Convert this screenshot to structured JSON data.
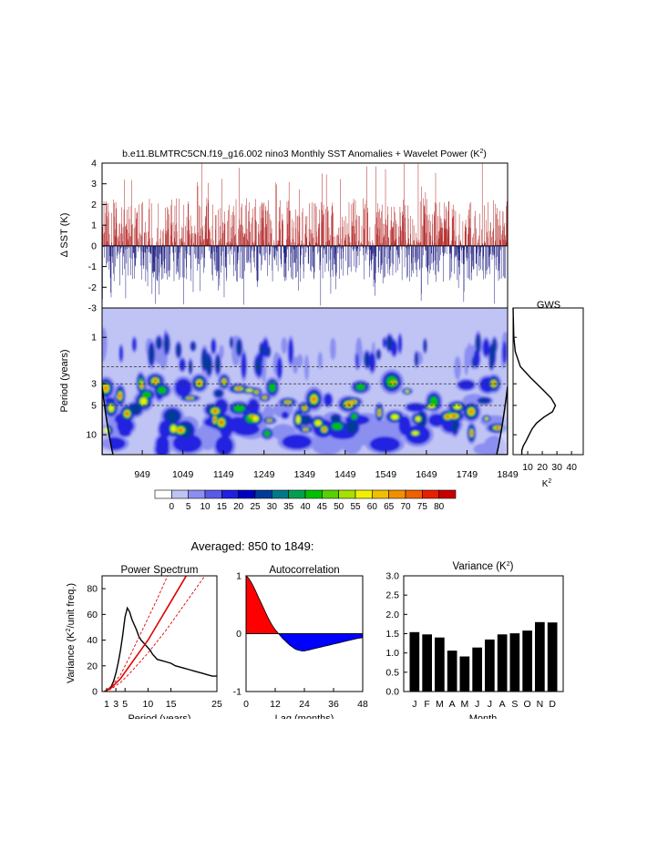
{
  "figure": {
    "title_main": "b.e11.BLMTRC5CN.f19_g16.002 nino3 Monthly SST Anomalies + Wavelet Power (K",
    "title_sup": "2",
    "title_close": ")",
    "averaged_title": "Averaged: 850 to 1849:"
  },
  "chart_data": [
    {
      "id": "sst-anomaly",
      "type": "bar",
      "title": "",
      "xlabel": "",
      "ylabel": "Δ SST (K)",
      "ylim": [
        -3,
        4
      ],
      "yticks": [
        "4",
        "3",
        "2",
        "1",
        "0",
        "-1",
        "-2",
        "-3"
      ],
      "xlim": [
        850,
        1849
      ],
      "sampling": "monthly, 850–1849",
      "colors": {
        "positive": "#b22222",
        "negative": "#1a1a80"
      }
    },
    {
      "id": "wavelet-power",
      "type": "heatmap",
      "title": "",
      "ylabel": "Period (years)",
      "yticks": [
        "1",
        "3",
        "5",
        "10"
      ],
      "xticks": [
        "949",
        "1049",
        "1149",
        "1249",
        "1349",
        "1449",
        "1549",
        "1649",
        "1749",
        "1849"
      ],
      "xlim": [
        850,
        1849
      ],
      "y_scale": "log",
      "ylim": [
        0.5,
        16
      ],
      "dashed_periods": [
        2,
        3,
        5
      ],
      "background_color": "#c0c4f4",
      "hotspot_periods_years": [
        3.5,
        5.5,
        7.5
      ],
      "colorbar": {
        "labels": [
          "0",
          "5",
          "10",
          "15",
          "20",
          "25",
          "30",
          "35",
          "40",
          "45",
          "50",
          "55",
          "60",
          "65",
          "70",
          "75",
          "80"
        ],
        "colors": [
          "#ffffff",
          "#c0c4f4",
          "#8a8ff0",
          "#5a5ae8",
          "#2020e0",
          "#0000c0",
          "#003a9a",
          "#007a8a",
          "#00a050",
          "#00c000",
          "#5ad000",
          "#a8e000",
          "#f0f000",
          "#f0c000",
          "#f09000",
          "#f06000",
          "#e82000",
          "#c80000"
        ]
      }
    },
    {
      "id": "gws",
      "type": "line",
      "title": "GWS",
      "xlabel": "K",
      "xlabel_sup": "2",
      "xticks": [
        "10",
        "20",
        "30",
        "40"
      ],
      "xlim": [
        0,
        48
      ],
      "y_scale": "log",
      "ylim": [
        0.5,
        16
      ],
      "points": [
        [
          0,
          0.5
        ],
        [
          0.5,
          1.0
        ],
        [
          1.5,
          1.4
        ],
        [
          5,
          2.0
        ],
        [
          12,
          2.6
        ],
        [
          20,
          3.4
        ],
        [
          26,
          4.2
        ],
        [
          29,
          5.0
        ],
        [
          27,
          5.8
        ],
        [
          21,
          6.6
        ],
        [
          16,
          7.6
        ],
        [
          13,
          8.7
        ],
        [
          11,
          10.0
        ],
        [
          9,
          11.5
        ],
        [
          7,
          13.0
        ],
        [
          6,
          14.5
        ],
        [
          6,
          16
        ]
      ]
    },
    {
      "id": "power-spectrum",
      "type": "line",
      "title": "Power Spectrum",
      "xlabel": "Period (years)",
      "ylabel_main": "Variance (K",
      "ylabel_sup": "2",
      "ylabel_rest": "/unit freq.)",
      "xlim": [
        0,
        25
      ],
      "ylim": [
        0,
        90
      ],
      "xticks": [
        "1",
        "3",
        "5",
        "10",
        "15",
        "25"
      ],
      "xtick_values": [
        1,
        3,
        5,
        10,
        15,
        25
      ],
      "yticks": [
        "0",
        "20",
        "40",
        "60",
        "80"
      ],
      "ytick_values": [
        0,
        20,
        40,
        60,
        80
      ],
      "series": [
        {
          "style": "black",
          "points": [
            [
              0.5,
              0
            ],
            [
              1,
              1
            ],
            [
              1.5,
              2
            ],
            [
              2,
              4
            ],
            [
              2.5,
              8
            ],
            [
              3,
              14
            ],
            [
              3.5,
              22
            ],
            [
              4,
              32
            ],
            [
              4.5,
              44
            ],
            [
              5,
              58
            ],
            [
              5.5,
              65
            ],
            [
              6,
              62
            ],
            [
              6.5,
              56
            ],
            [
              7,
              52
            ],
            [
              7.5,
              48
            ],
            [
              8,
              43
            ],
            [
              8.5,
              40
            ],
            [
              9,
              38
            ],
            [
              9.5,
              36
            ],
            [
              10,
              34
            ],
            [
              10.5,
              32
            ],
            [
              11,
              29
            ],
            [
              11.5,
              27
            ],
            [
              12,
              25
            ],
            [
              13,
              24
            ],
            [
              14,
              23
            ],
            [
              15,
              22
            ],
            [
              16,
              20
            ],
            [
              17,
              19
            ],
            [
              18,
              18
            ],
            [
              19,
              17
            ],
            [
              20,
              16
            ],
            [
              21,
              15
            ],
            [
              22,
              14
            ],
            [
              23,
              13
            ],
            [
              24,
              12
            ],
            [
              25,
              12
            ]
          ]
        },
        {
          "style": "red-solid",
          "points": [
            [
              0.5,
              0
            ],
            [
              2,
              3
            ],
            [
              4,
              10
            ],
            [
              6,
              20
            ],
            [
              8,
              30
            ],
            [
              10,
              40
            ],
            [
              12,
              52
            ],
            [
              14,
              64
            ],
            [
              16,
              76
            ],
            [
              18,
              88
            ],
            [
              18.3,
              90
            ]
          ]
        },
        {
          "style": "red-dashed",
          "points": [
            [
              0.5,
              0
            ],
            [
              2,
              4
            ],
            [
              4,
              13
            ],
            [
              6,
              27
            ],
            [
              8,
              42
            ],
            [
              10,
              57
            ],
            [
              12,
              72
            ],
            [
              14,
              88
            ],
            [
              14.2,
              90
            ]
          ]
        },
        {
          "style": "red-dashed",
          "points": [
            [
              0.5,
              0
            ],
            [
              2,
              2
            ],
            [
              4,
              7
            ],
            [
              6,
              14
            ],
            [
              8,
              22
            ],
            [
              10,
              30
            ],
            [
              12,
              39
            ],
            [
              14,
              48
            ],
            [
              16,
              58
            ],
            [
              18,
              68
            ],
            [
              20,
              78
            ],
            [
              22,
              88
            ],
            [
              22.3,
              90
            ]
          ]
        }
      ]
    },
    {
      "id": "autocorrelation",
      "type": "area",
      "title": "Autocorrelation",
      "xlabel": "Lag (months)",
      "xlim": [
        0,
        48
      ],
      "ylim": [
        -1,
        1
      ],
      "xticks": [
        "0",
        "12",
        "24",
        "36",
        "48"
      ],
      "xtick_values": [
        0,
        12,
        24,
        36,
        48
      ],
      "yticks": [
        "1",
        "0",
        "-1"
      ],
      "ytick_values": [
        1,
        0,
        -1
      ],
      "colors": {
        "positive": "#ff0000",
        "negative": "#0000ff"
      },
      "points": [
        [
          0,
          1.0
        ],
        [
          1,
          0.96
        ],
        [
          2,
          0.9
        ],
        [
          3,
          0.82
        ],
        [
          4,
          0.73
        ],
        [
          5,
          0.64
        ],
        [
          6,
          0.55
        ],
        [
          7,
          0.46
        ],
        [
          8,
          0.37
        ],
        [
          9,
          0.28
        ],
        [
          10,
          0.2
        ],
        [
          11,
          0.13
        ],
        [
          12,
          0.07
        ],
        [
          13,
          0.02
        ],
        [
          14,
          -0.03
        ],
        [
          15,
          -0.08
        ],
        [
          16,
          -0.12
        ],
        [
          17,
          -0.16
        ],
        [
          18,
          -0.2
        ],
        [
          19,
          -0.23
        ],
        [
          20,
          -0.26
        ],
        [
          21,
          -0.28
        ],
        [
          22,
          -0.29
        ],
        [
          23,
          -0.3
        ],
        [
          24,
          -0.3
        ],
        [
          25,
          -0.29
        ],
        [
          26,
          -0.28
        ],
        [
          27,
          -0.27
        ],
        [
          28,
          -0.26
        ],
        [
          29,
          -0.25
        ],
        [
          30,
          -0.24
        ],
        [
          31,
          -0.23
        ],
        [
          32,
          -0.22
        ],
        [
          33,
          -0.21
        ],
        [
          34,
          -0.2
        ],
        [
          35,
          -0.19
        ],
        [
          36,
          -0.18
        ],
        [
          38,
          -0.16
        ],
        [
          40,
          -0.14
        ],
        [
          42,
          -0.12
        ],
        [
          44,
          -0.1
        ],
        [
          46,
          -0.08
        ],
        [
          48,
          -0.07
        ]
      ]
    },
    {
      "id": "monthly-variance",
      "type": "bar",
      "title_main": "Variance (K",
      "title_sup": "2",
      "title_close": ")",
      "xlabel": "Month",
      "ylim": [
        0,
        3
      ],
      "yticks": [
        "0.0",
        "0.5",
        "1.0",
        "1.5",
        "2.0",
        "2.5",
        "3.0"
      ],
      "ytick_values": [
        0,
        0.5,
        1,
        1.5,
        2,
        2.5,
        3
      ],
      "categories": [
        "J",
        "F",
        "M",
        "A",
        "M",
        "J",
        "J",
        "A",
        "S",
        "O",
        "N",
        "D"
      ],
      "values": [
        1.54,
        1.48,
        1.4,
        1.06,
        0.91,
        1.14,
        1.35,
        1.48,
        1.51,
        1.58,
        1.8,
        1.79
      ],
      "color": "#000000"
    }
  ]
}
